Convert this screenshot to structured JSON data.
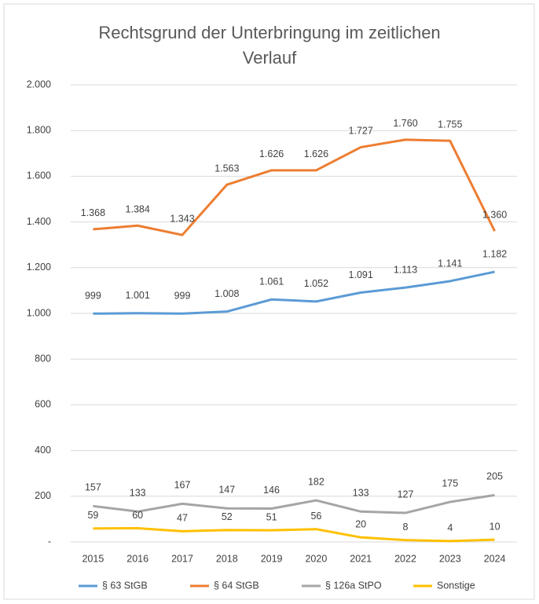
{
  "chart_data": {
    "type": "line",
    "title": "Rechtsgrund der Unterbringung im zeitlichen Verlauf",
    "categories": [
      "2015",
      "2016",
      "2017",
      "2018",
      "2019",
      "2020",
      "2021",
      "2022",
      "2023",
      "2024"
    ],
    "series": [
      {
        "name": "§ 63 StGB",
        "color": "#5b9bd5",
        "values": [
          999,
          1001,
          999,
          1008,
          1061,
          1052,
          1091,
          1113,
          1141,
          1182
        ],
        "value_labels": [
          "999",
          "1.001",
          "999",
          "1.008",
          "1.061",
          "1.052",
          "1.091",
          "1.113",
          "1.141",
          "1.182"
        ]
      },
      {
        "name": "§ 64 StGB",
        "color": "#ed7d31",
        "values": [
          1368,
          1384,
          1343,
          1563,
          1626,
          1626,
          1727,
          1760,
          1755,
          1360
        ],
        "value_labels": [
          "1.368",
          "1.384",
          "1.343",
          "1.563",
          "1.626",
          "1.626",
          "1.727",
          "1.760",
          "1.755",
          "1.360"
        ]
      },
      {
        "name": "§ 126a StPO",
        "color": "#a5a5a5",
        "values": [
          157,
          133,
          167,
          147,
          146,
          182,
          133,
          127,
          175,
          205
        ]
      },
      {
        "name": "Sonstige",
        "color": "#ffc000",
        "values": [
          59,
          60,
          47,
          52,
          51,
          56,
          20,
          8,
          4,
          10
        ]
      }
    ],
    "ylim": [
      0,
      2000
    ],
    "yticks": [
      {
        "value": 0,
        "label": "-"
      },
      200,
      400,
      600,
      800,
      {
        "value": 1000,
        "label": "1.000"
      },
      {
        "value": 1200,
        "label": "1.200"
      },
      {
        "value": 1400,
        "label": "1.400"
      },
      {
        "value": 1600,
        "label": "1.600"
      },
      {
        "value": 1800,
        "label": "1.800"
      },
      {
        "value": 2000,
        "label": "2.000"
      }
    ],
    "grid": true,
    "legend": "bottom"
  }
}
